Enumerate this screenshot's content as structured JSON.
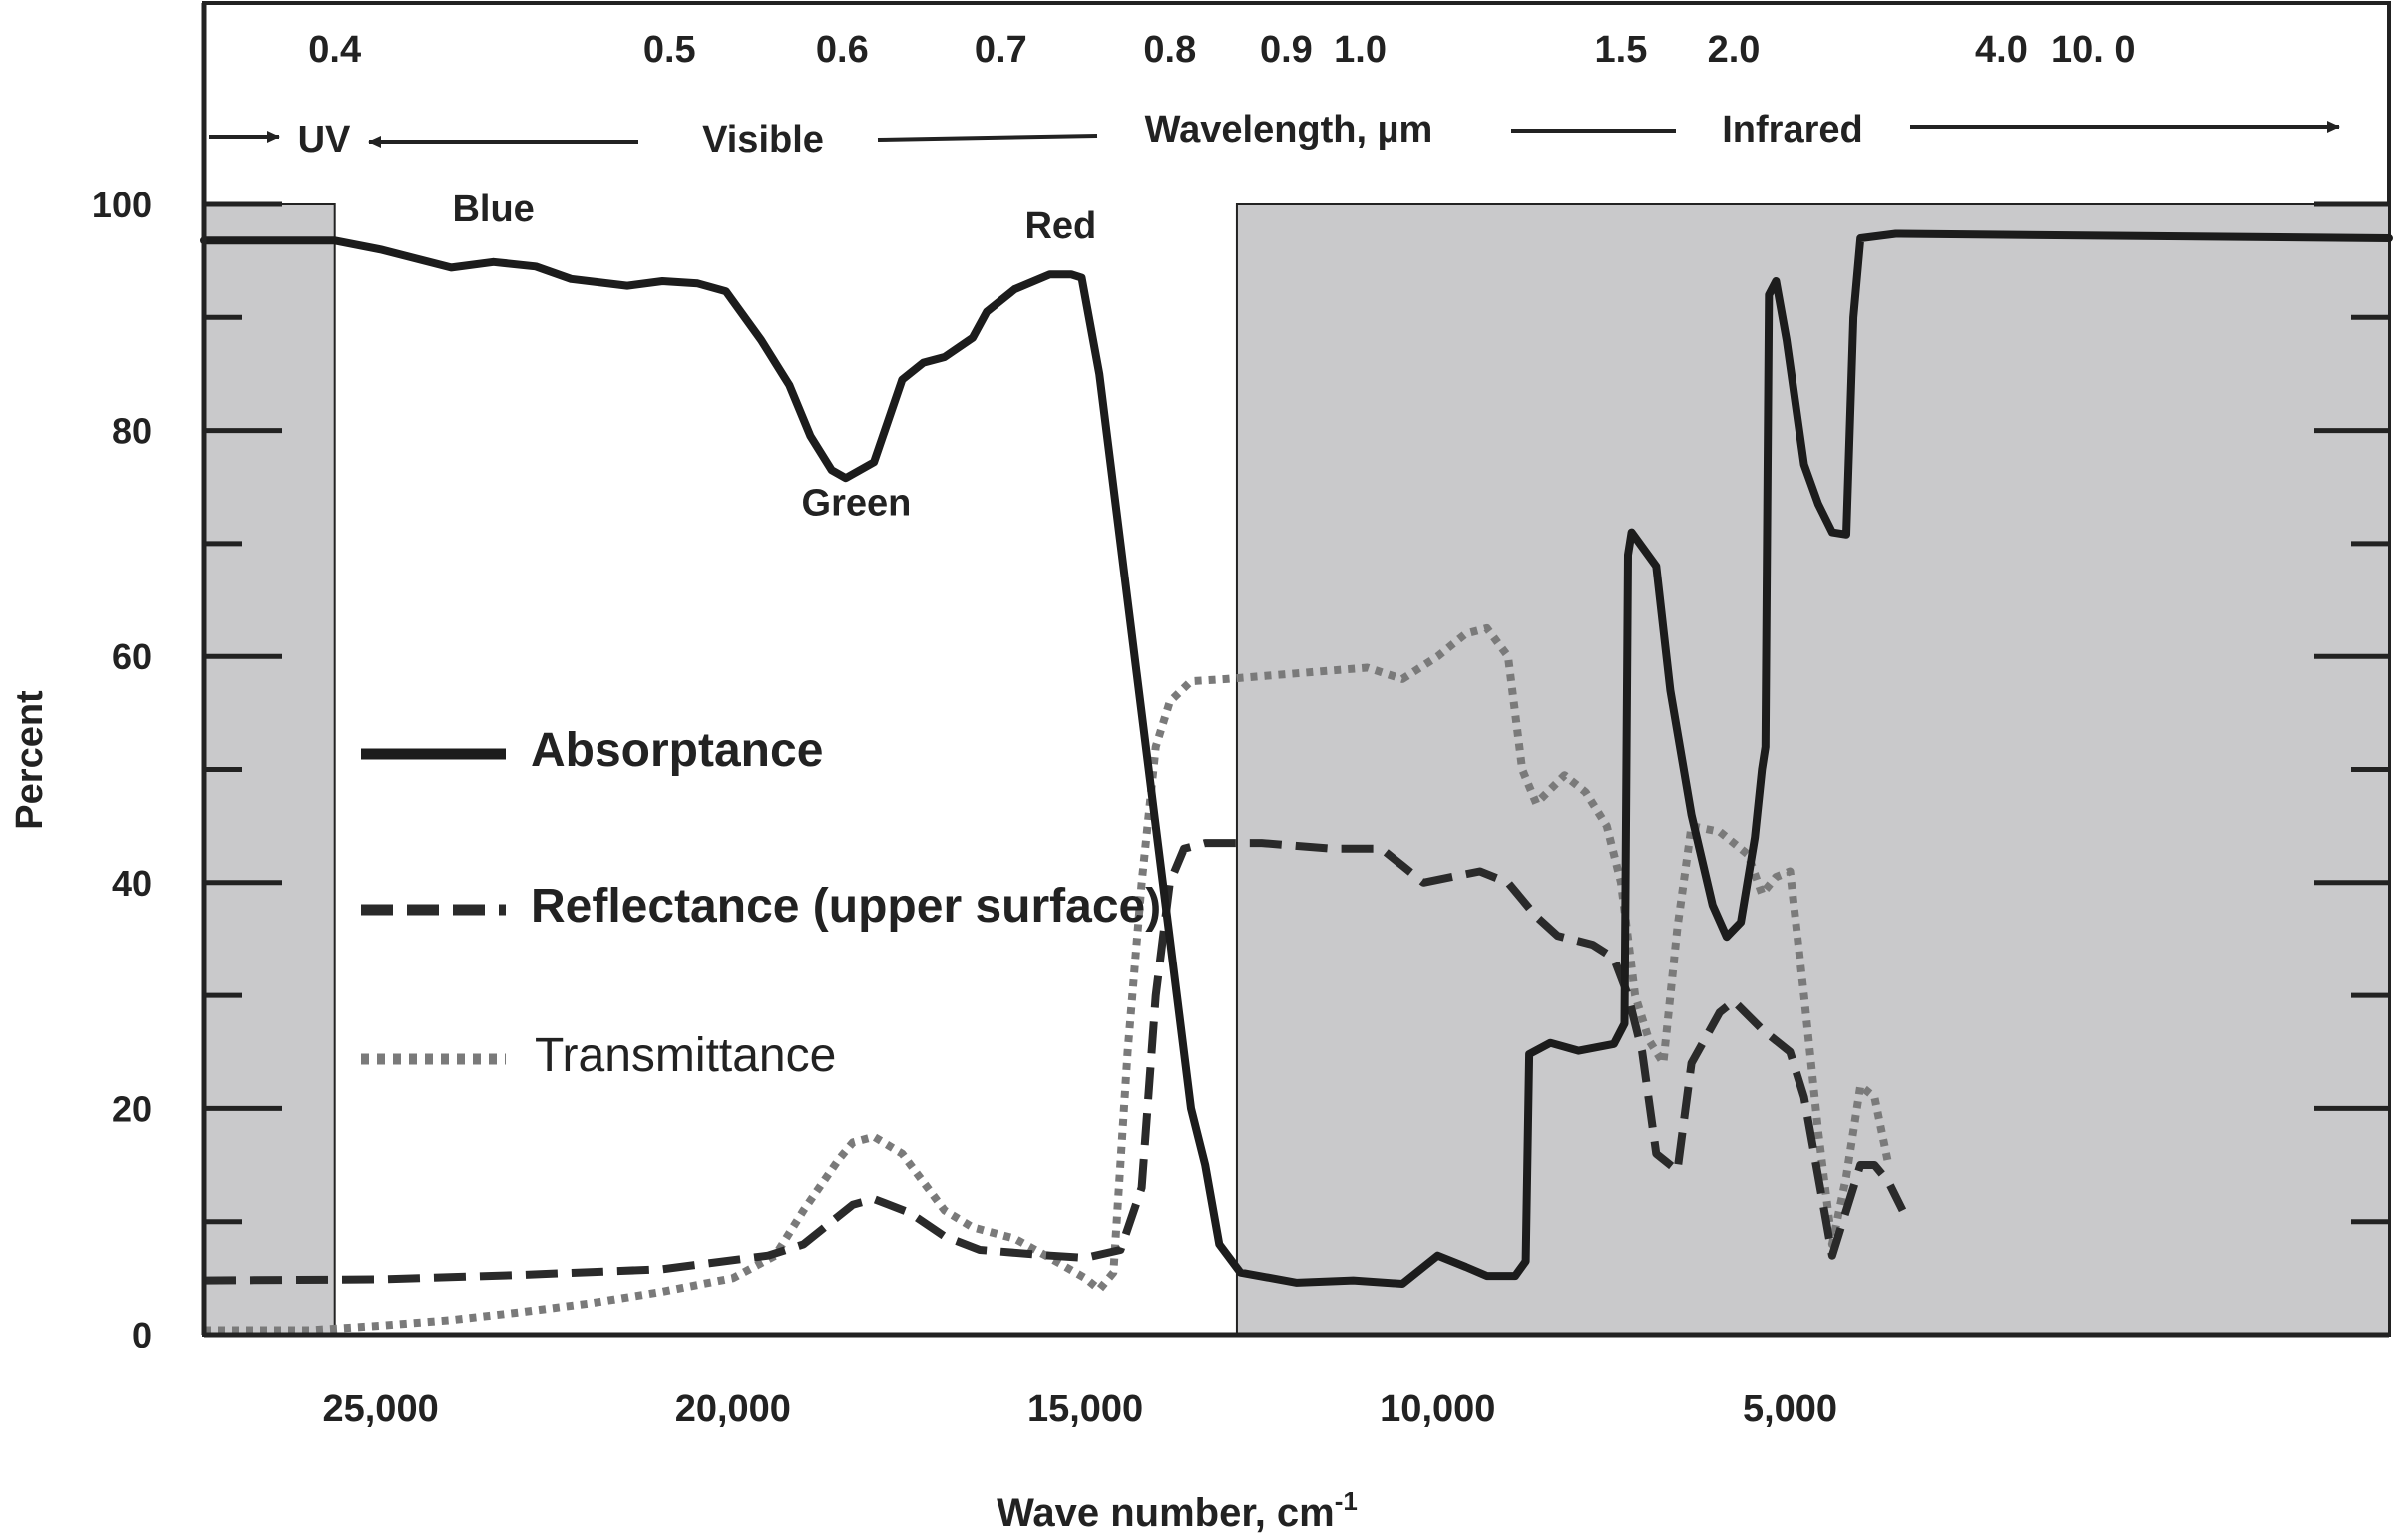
{
  "chart_data": {
    "type": "line",
    "title": "",
    "xlabel": "Wave number, cm",
    "xlabel_superscript": "-1",
    "ylabel": "Percent",
    "xlim": [
      27500,
      -3500
    ],
    "ylim": [
      0,
      100
    ],
    "x_ticks": [
      {
        "value": 25000,
        "label": "25,000"
      },
      {
        "value": 20000,
        "label": "20,000"
      },
      {
        "value": 15000,
        "label": "15,000"
      },
      {
        "value": 10000,
        "label": "10,000"
      },
      {
        "value": 5000,
        "label": "5,000"
      }
    ],
    "y_ticks": [
      {
        "value": 0,
        "label": "0"
      },
      {
        "value": 20,
        "label": "20"
      },
      {
        "value": 40,
        "label": "40"
      },
      {
        "value": 60,
        "label": "60"
      },
      {
        "value": 80,
        "label": "80"
      },
      {
        "value": 100,
        "label": "100"
      }
    ],
    "y_minor_ticks": [
      10,
      30,
      50,
      70,
      90
    ],
    "top_axis": {
      "ticks": [
        {
          "value": 25650,
          "label": "0.4"
        },
        {
          "value": 20900,
          "label": "0.5"
        },
        {
          "value": 18450,
          "label": "0.6"
        },
        {
          "value": 16200,
          "label": "0.7"
        },
        {
          "value": 13800,
          "label": "0.8"
        },
        {
          "value": 12150,
          "label": "0.9"
        },
        {
          "value": 11100,
          "label": "1.0"
        },
        {
          "value": 7400,
          "label": "1.5"
        },
        {
          "value": 5800,
          "label": "2.0"
        },
        {
          "value": 2000,
          "label": "4.0"
        },
        {
          "value": 700,
          "label": "10. 0"
        }
      ],
      "band_labels": {
        "uv": "UV",
        "visible": "Visible",
        "wavelength": "Wavelength, µm",
        "infrared": "Infrared"
      }
    },
    "regions": [
      {
        "name": "UV",
        "x": [
          27500,
          25650
        ],
        "color": "#c9c9cb"
      },
      {
        "name": "Infrared",
        "x": [
          12850,
          -3500
        ],
        "color": "#c9c9cb"
      }
    ],
    "annotations": [
      {
        "text": "Blue",
        "x": 23400,
        "y": 98.5,
        "color": "#1f2a5c"
      },
      {
        "text": "Green",
        "x": 18250,
        "y": 72.5,
        "color": "#1f5a1f"
      },
      {
        "text": "Red",
        "x": 15350,
        "y": 97,
        "color": "#7a1a1a"
      }
    ],
    "legend": {
      "placement": "left-center"
    },
    "series": [
      {
        "name": "Absorptance",
        "style": "solid",
        "color": "#1c1c1c",
        "points": [
          [
            27500,
            96.8
          ],
          [
            25650,
            96.8
          ],
          [
            25000,
            96
          ],
          [
            24000,
            94.4
          ],
          [
            23400,
            94.9
          ],
          [
            22800,
            94.5
          ],
          [
            22300,
            93.4
          ],
          [
            21500,
            92.8
          ],
          [
            21000,
            93.2
          ],
          [
            20500,
            93
          ],
          [
            20100,
            92.3
          ],
          [
            19600,
            88
          ],
          [
            19200,
            84
          ],
          [
            18900,
            79.5
          ],
          [
            18600,
            76.5
          ],
          [
            18400,
            75.8
          ],
          [
            18000,
            77.2
          ],
          [
            17600,
            84.5
          ],
          [
            17300,
            86
          ],
          [
            17000,
            86.5
          ],
          [
            16600,
            88.2
          ],
          [
            16400,
            90.5
          ],
          [
            16000,
            92.5
          ],
          [
            15500,
            93.8
          ],
          [
            15200,
            93.8
          ],
          [
            15050,
            93.5
          ],
          [
            14800,
            85
          ],
          [
            14500,
            70
          ],
          [
            14000,
            45
          ],
          [
            13700,
            30
          ],
          [
            13500,
            20
          ],
          [
            13300,
            15
          ],
          [
            13100,
            8
          ],
          [
            12800,
            5.5
          ],
          [
            12000,
            4.6
          ],
          [
            11200,
            4.8
          ],
          [
            10500,
            4.5
          ],
          [
            10000,
            7
          ],
          [
            9600,
            6
          ],
          [
            9300,
            5.2
          ],
          [
            8900,
            5.2
          ],
          [
            8750,
            6.5
          ],
          [
            8700,
            24.8
          ],
          [
            8400,
            25.8
          ],
          [
            8000,
            25.1
          ],
          [
            7500,
            25.7
          ],
          [
            7350,
            27.5
          ],
          [
            7300,
            69
          ],
          [
            7250,
            71
          ],
          [
            6900,
            68
          ],
          [
            6700,
            57
          ],
          [
            6400,
            46
          ],
          [
            6100,
            38
          ],
          [
            5900,
            35.2
          ],
          [
            5700,
            36.5
          ],
          [
            5500,
            44
          ],
          [
            5400,
            50
          ],
          [
            5350,
            52
          ],
          [
            5300,
            92
          ],
          [
            5200,
            93.2
          ],
          [
            5050,
            88
          ],
          [
            4800,
            77
          ],
          [
            4600,
            73.5
          ],
          [
            4400,
            71
          ],
          [
            4200,
            70.8
          ],
          [
            4100,
            90
          ],
          [
            4000,
            97
          ],
          [
            3500,
            97.4
          ],
          [
            -3500,
            97
          ]
        ]
      },
      {
        "name": "Reflectance (upper surface)",
        "style": "dashed",
        "color": "#2a2a2a",
        "points": [
          [
            27500,
            4.8
          ],
          [
            25000,
            4.9
          ],
          [
            23000,
            5.3
          ],
          [
            21000,
            5.8
          ],
          [
            19500,
            7
          ],
          [
            19000,
            8
          ],
          [
            18300,
            11.5
          ],
          [
            18000,
            12
          ],
          [
            17500,
            10.8
          ],
          [
            17000,
            8.7
          ],
          [
            16500,
            7.5
          ],
          [
            15500,
            7
          ],
          [
            15000,
            6.8
          ],
          [
            14500,
            7.5
          ],
          [
            14200,
            13
          ],
          [
            14000,
            30
          ],
          [
            13800,
            40
          ],
          [
            13600,
            43
          ],
          [
            13300,
            43.5
          ],
          [
            12500,
            43.5
          ],
          [
            11500,
            43
          ],
          [
            10800,
            43
          ],
          [
            10500,
            41.5
          ],
          [
            10200,
            40
          ],
          [
            9800,
            40.5
          ],
          [
            9400,
            41
          ],
          [
            9000,
            40
          ],
          [
            8600,
            37
          ],
          [
            8300,
            35.3
          ],
          [
            7800,
            34.5
          ],
          [
            7500,
            33.3
          ],
          [
            7300,
            30
          ],
          [
            7100,
            25
          ],
          [
            6900,
            16
          ],
          [
            6600,
            14.5
          ],
          [
            6400,
            24
          ],
          [
            6000,
            28.5
          ],
          [
            5800,
            29.5
          ],
          [
            5400,
            27
          ],
          [
            5000,
            25
          ],
          [
            4800,
            21
          ],
          [
            4600,
            14
          ],
          [
            4400,
            7
          ],
          [
            4200,
            11
          ],
          [
            4000,
            15
          ],
          [
            3800,
            15
          ],
          [
            3600,
            13.5
          ],
          [
            3400,
            11
          ]
        ]
      },
      {
        "name": "Transmittance",
        "style": "dotted",
        "color": "#7a7a7a",
        "points": [
          [
            27500,
            0.4
          ],
          [
            26000,
            0.4
          ],
          [
            25000,
            0.8
          ],
          [
            24000,
            1.3
          ],
          [
            23000,
            2
          ],
          [
            22000,
            2.8
          ],
          [
            21000,
            3.8
          ],
          [
            20000,
            5
          ],
          [
            19400,
            7
          ],
          [
            19000,
            11
          ],
          [
            18500,
            15.5
          ],
          [
            18300,
            17
          ],
          [
            18000,
            17.5
          ],
          [
            17600,
            16
          ],
          [
            17000,
            11
          ],
          [
            16600,
            9.5
          ],
          [
            16000,
            8.5
          ],
          [
            15500,
            6.8
          ],
          [
            15000,
            5
          ],
          [
            14800,
            4
          ],
          [
            14600,
            5.5
          ],
          [
            14400,
            25
          ],
          [
            14200,
            40
          ],
          [
            14000,
            52
          ],
          [
            13800,
            56
          ],
          [
            13500,
            57.8
          ],
          [
            13000,
            58
          ],
          [
            12000,
            58.5
          ],
          [
            11000,
            59
          ],
          [
            10500,
            58
          ],
          [
            10000,
            60
          ],
          [
            9600,
            62
          ],
          [
            9300,
            62.5
          ],
          [
            9000,
            60
          ],
          [
            8800,
            50
          ],
          [
            8600,
            47
          ],
          [
            8200,
            49.5
          ],
          [
            7900,
            48
          ],
          [
            7600,
            45
          ],
          [
            7400,
            40
          ],
          [
            7200,
            30
          ],
          [
            7000,
            26
          ],
          [
            6800,
            24
          ],
          [
            6600,
            36
          ],
          [
            6400,
            45
          ],
          [
            6000,
            44.5
          ],
          [
            5600,
            42.5
          ],
          [
            5400,
            39
          ],
          [
            5200,
            40.5
          ],
          [
            5000,
            41
          ],
          [
            4800,
            30
          ],
          [
            4600,
            18
          ],
          [
            4400,
            8
          ],
          [
            4200,
            14
          ],
          [
            4000,
            22
          ],
          [
            3800,
            21
          ],
          [
            3600,
            15
          ]
        ]
      }
    ]
  }
}
